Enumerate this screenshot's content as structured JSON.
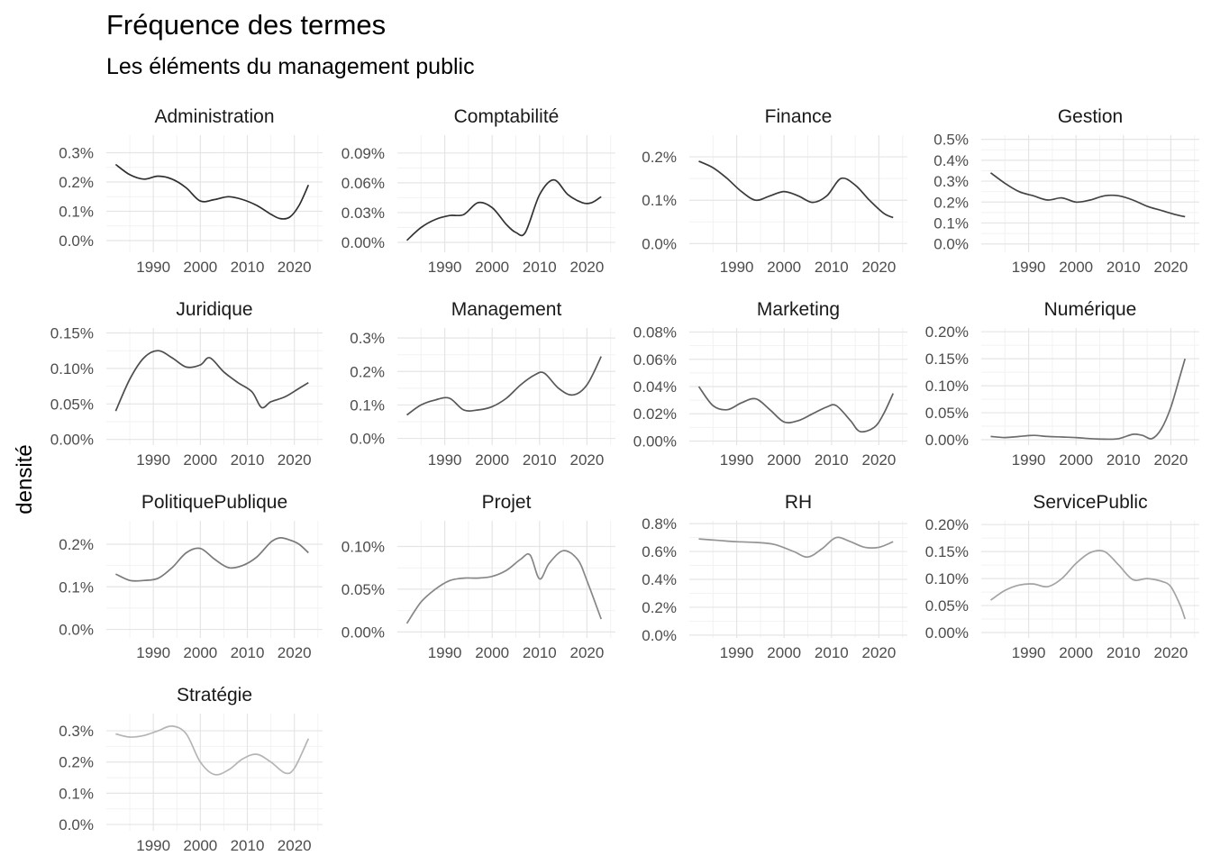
{
  "chart_data": {
    "type": "line",
    "title": "Fréquence des termes",
    "subtitle": "Les éléments du management public",
    "xlabel": "",
    "ylabel": "densité",
    "grid": true,
    "legend": "none",
    "x_ticks": [
      "1990",
      "2000",
      "2010",
      "2020"
    ],
    "xlim": [
      1980,
      2026
    ],
    "panels": [
      {
        "name": "Administration",
        "color": "#2e2e2e",
        "ylim": [
          -0.04,
          0.36
        ],
        "y_ticks": [
          0,
          0.1,
          0.2,
          0.3
        ],
        "y_tick_labels": [
          "0.0%",
          "0.1%",
          "0.2%",
          "0.3%"
        ],
        "x": [
          1982,
          1985,
          1988,
          1991,
          1994,
          1997,
          2000,
          2003,
          2006,
          2009,
          2012,
          2015,
          2017,
          2019,
          2021,
          2023
        ],
        "y": [
          0.26,
          0.225,
          0.21,
          0.22,
          0.21,
          0.18,
          0.135,
          0.14,
          0.15,
          0.14,
          0.12,
          0.09,
          0.075,
          0.08,
          0.12,
          0.19
        ]
      },
      {
        "name": "Comptabilité",
        "color": "#333333",
        "ylim": [
          -0.01,
          0.108
        ],
        "y_ticks": [
          0,
          0.03,
          0.06,
          0.09
        ],
        "y_tick_labels": [
          "0.00%",
          "0.03%",
          "0.06%",
          "0.09%"
        ],
        "x": [
          1982,
          1985,
          1988,
          1991,
          1994,
          1997,
          2000,
          2003,
          2005,
          2007,
          2010,
          2013,
          2016,
          2019,
          2021,
          2023
        ],
        "y": [
          0.002,
          0.015,
          0.023,
          0.027,
          0.028,
          0.04,
          0.035,
          0.018,
          0.01,
          0.01,
          0.048,
          0.063,
          0.048,
          0.04,
          0.04,
          0.046
        ]
      },
      {
        "name": "Finance",
        "color": "#3b3b3b",
        "ylim": [
          -0.02,
          0.25
        ],
        "y_ticks": [
          0,
          0.1,
          0.2
        ],
        "y_tick_labels": [
          "0.0%",
          "0.1%",
          "0.2%"
        ],
        "x": [
          1982,
          1985,
          1988,
          1991,
          1994,
          1997,
          2000,
          2003,
          2006,
          2009,
          2012,
          2015,
          2018,
          2021,
          2023
        ],
        "y": [
          0.19,
          0.175,
          0.15,
          0.12,
          0.1,
          0.11,
          0.12,
          0.11,
          0.095,
          0.11,
          0.15,
          0.135,
          0.1,
          0.07,
          0.06
        ]
      },
      {
        "name": "Gestion",
        "color": "#444444",
        "ylim": [
          -0.04,
          0.52
        ],
        "y_ticks": [
          0,
          0.1,
          0.2,
          0.3,
          0.4,
          0.5
        ],
        "y_tick_labels": [
          "0.0%",
          "0.1%",
          "0.2%",
          "0.3%",
          "0.4%",
          "0.5%"
        ],
        "x": [
          1982,
          1985,
          1988,
          1991,
          1994,
          1997,
          2000,
          2003,
          2006,
          2009,
          2012,
          2015,
          2018,
          2021,
          2023
        ],
        "y": [
          0.34,
          0.29,
          0.25,
          0.23,
          0.21,
          0.22,
          0.2,
          0.21,
          0.23,
          0.23,
          0.21,
          0.18,
          0.16,
          0.14,
          0.13
        ]
      },
      {
        "name": "Juridique",
        "color": "#4d4d4d",
        "ylim": [
          -0.008,
          0.157
        ],
        "y_ticks": [
          0,
          0.05,
          0.1,
          0.15
        ],
        "y_tick_labels": [
          "0.00%",
          "0.05%",
          "0.10%",
          "0.15%"
        ],
        "x": [
          1982,
          1985,
          1988,
          1991,
          1994,
          1997,
          2000,
          2002,
          2005,
          2008,
          2011,
          2013,
          2015,
          2018,
          2021,
          2023
        ],
        "y": [
          0.04,
          0.085,
          0.115,
          0.125,
          0.115,
          0.102,
          0.105,
          0.115,
          0.095,
          0.08,
          0.067,
          0.045,
          0.053,
          0.06,
          0.072,
          0.08
        ]
      },
      {
        "name": "Management",
        "color": "#575757",
        "ylim": [
          -0.02,
          0.33
        ],
        "y_ticks": [
          0,
          0.1,
          0.2,
          0.3
        ],
        "y_tick_labels": [
          "0.0%",
          "0.1%",
          "0.2%",
          "0.3%"
        ],
        "x": [
          1982,
          1985,
          1988,
          1991,
          1994,
          1997,
          2000,
          2003,
          2006,
          2009,
          2011,
          2014,
          2017,
          2020,
          2023
        ],
        "y": [
          0.07,
          0.1,
          0.115,
          0.12,
          0.085,
          0.085,
          0.095,
          0.12,
          0.16,
          0.19,
          0.195,
          0.15,
          0.13,
          0.16,
          0.245
        ]
      },
      {
        "name": "Marketing",
        "color": "#626262",
        "ylim": [
          -0.003,
          0.083
        ],
        "y_ticks": [
          0,
          0.02,
          0.04,
          0.06,
          0.08
        ],
        "y_tick_labels": [
          "0.00%",
          "0.02%",
          "0.04%",
          "0.06%",
          "0.08%"
        ],
        "x": [
          1982,
          1985,
          1988,
          1991,
          1994,
          1997,
          2000,
          2003,
          2006,
          2009,
          2011,
          2014,
          2016,
          2019,
          2021,
          2023
        ],
        "y": [
          0.04,
          0.026,
          0.023,
          0.028,
          0.031,
          0.023,
          0.014,
          0.015,
          0.02,
          0.025,
          0.026,
          0.015,
          0.007,
          0.01,
          0.02,
          0.035
        ]
      },
      {
        "name": "Numérique",
        "color": "#6e6e6e",
        "ylim": [
          -0.01,
          0.207
        ],
        "y_ticks": [
          0,
          0.05,
          0.1,
          0.15,
          0.2
        ],
        "y_tick_labels": [
          "0.00%",
          "0.05%",
          "0.10%",
          "0.15%",
          "0.20%"
        ],
        "x": [
          1982,
          1985,
          1988,
          1991,
          1994,
          1997,
          2000,
          2003,
          2006,
          2009,
          2012,
          2014,
          2016,
          2018,
          2020,
          2022,
          2023
        ],
        "y": [
          0.006,
          0.004,
          0.006,
          0.008,
          0.006,
          0.005,
          0.004,
          0.002,
          0.001,
          0.002,
          0.01,
          0.008,
          0.002,
          0.02,
          0.06,
          0.12,
          0.15
        ]
      },
      {
        "name": "PolitiquePublique",
        "color": "#7a7a7a",
        "ylim": [
          -0.02,
          0.255
        ],
        "y_ticks": [
          0,
          0.1,
          0.2
        ],
        "y_tick_labels": [
          "0.0%",
          "0.1%",
          "0.2%"
        ],
        "x": [
          1982,
          1985,
          1988,
          1991,
          1994,
          1997,
          2000,
          2003,
          2006,
          2009,
          2012,
          2015,
          2017,
          2019,
          2021,
          2023
        ],
        "y": [
          0.13,
          0.115,
          0.115,
          0.12,
          0.145,
          0.18,
          0.19,
          0.165,
          0.145,
          0.15,
          0.17,
          0.205,
          0.215,
          0.21,
          0.2,
          0.18
        ]
      },
      {
        "name": "Projet",
        "color": "#878787",
        "ylim": [
          -0.007,
          0.13
        ],
        "y_ticks": [
          0,
          0.05,
          0.1
        ],
        "y_tick_labels": [
          "0.00%",
          "0.05%",
          "0.10%"
        ],
        "x": [
          1982,
          1985,
          1988,
          1991,
          1994,
          1997,
          2000,
          2003,
          2006,
          2008,
          2010,
          2012,
          2015,
          2018,
          2020,
          2023
        ],
        "y": [
          0.01,
          0.035,
          0.05,
          0.06,
          0.063,
          0.063,
          0.065,
          0.072,
          0.085,
          0.09,
          0.062,
          0.08,
          0.095,
          0.085,
          0.06,
          0.015
        ]
      },
      {
        "name": "RH",
        "color": "#949494",
        "ylim": [
          -0.02,
          0.82
        ],
        "y_ticks": [
          0,
          0.2,
          0.4,
          0.6,
          0.8
        ],
        "y_tick_labels": [
          "0.0%",
          "0.2%",
          "0.4%",
          "0.6%",
          "0.8%"
        ],
        "x": [
          1982,
          1986,
          1990,
          1994,
          1998,
          2002,
          2005,
          2008,
          2011,
          2014,
          2017,
          2020,
          2023
        ],
        "y": [
          0.69,
          0.68,
          0.67,
          0.665,
          0.65,
          0.6,
          0.56,
          0.62,
          0.7,
          0.67,
          0.63,
          0.63,
          0.67
        ]
      },
      {
        "name": "ServicePublic",
        "color": "#a3a3a3",
        "ylim": [
          -0.01,
          0.207
        ],
        "y_ticks": [
          0,
          0.05,
          0.1,
          0.15,
          0.2
        ],
        "y_tick_labels": [
          "0.00%",
          "0.05%",
          "0.10%",
          "0.15%",
          "0.20%"
        ],
        "x": [
          1982,
          1985,
          1988,
          1991,
          1994,
          1997,
          2000,
          2003,
          2006,
          2009,
          2012,
          2015,
          2018,
          2020,
          2022,
          2023
        ],
        "y": [
          0.06,
          0.078,
          0.088,
          0.09,
          0.085,
          0.1,
          0.128,
          0.148,
          0.15,
          0.125,
          0.098,
          0.1,
          0.095,
          0.085,
          0.05,
          0.025
        ]
      },
      {
        "name": "Stratégie",
        "color": "#b5b5b5",
        "ylim": [
          -0.02,
          0.355
        ],
        "y_ticks": [
          0,
          0.1,
          0.2,
          0.3
        ],
        "y_tick_labels": [
          "0.0%",
          "0.1%",
          "0.2%",
          "0.3%"
        ],
        "x": [
          1982,
          1985,
          1988,
          1991,
          1994,
          1997,
          2000,
          2003,
          2006,
          2009,
          2012,
          2015,
          2018,
          2020,
          2023
        ],
        "y": [
          0.29,
          0.28,
          0.285,
          0.3,
          0.315,
          0.29,
          0.2,
          0.16,
          0.175,
          0.21,
          0.225,
          0.2,
          0.165,
          0.18,
          0.275
        ]
      }
    ]
  }
}
